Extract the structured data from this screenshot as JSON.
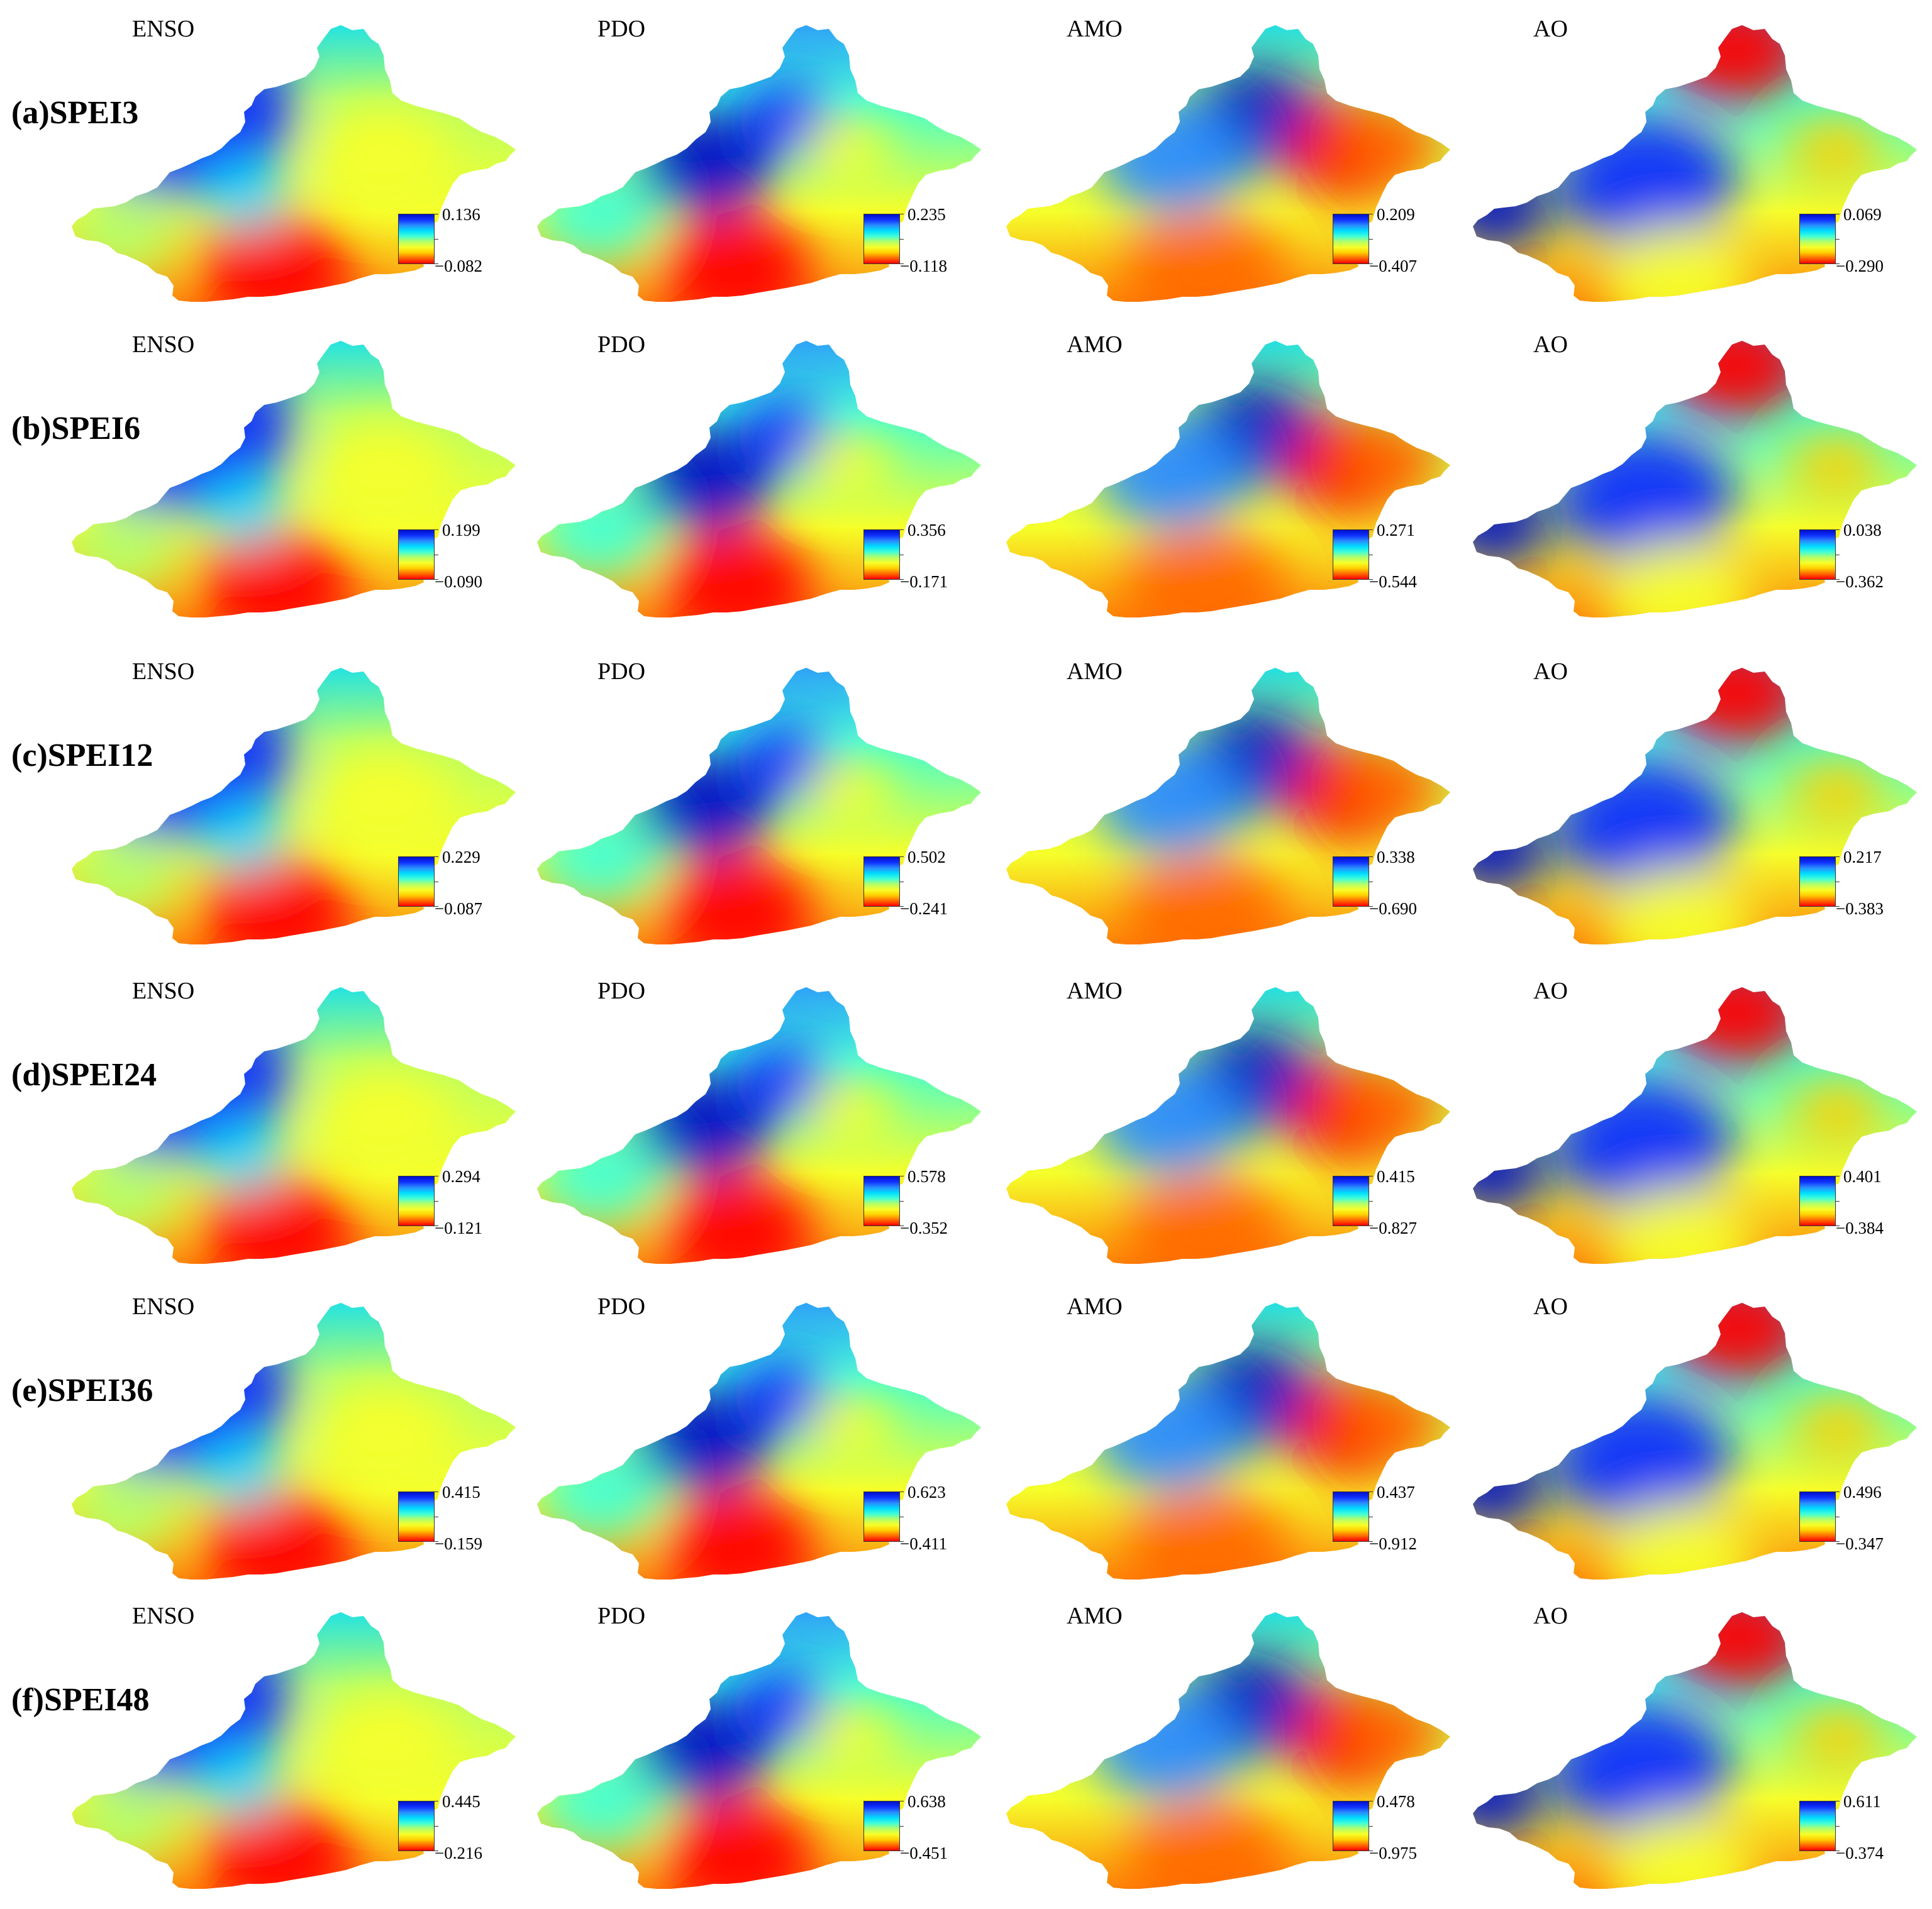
{
  "colors": {
    "scale": [
      "#ff0000",
      "#ff6a00",
      "#ffd000",
      "#f6ff2a",
      "#b4ff6a",
      "#40ffd8",
      "#00dcff",
      "#2a8cff",
      "#1030ff",
      "#0010c8"
    ]
  },
  "rows": [
    {
      "label": "(a)SPEI3",
      "panels": [
        {
          "title": "ENSO",
          "max": "0.136",
          "min": "−0.082"
        },
        {
          "title": "PDO",
          "max": "0.235",
          "min": "−0.118"
        },
        {
          "title": "AMO",
          "max": "0.209",
          "min": "−0.407"
        },
        {
          "title": "AO",
          "max": "0.069",
          "min": "−0.290"
        }
      ]
    },
    {
      "label": "(b)SPEI6",
      "panels": [
        {
          "title": "ENSO",
          "max": "0.199",
          "min": "−0.090"
        },
        {
          "title": "PDO",
          "max": "0.356",
          "min": "−0.171"
        },
        {
          "title": "AMO",
          "max": "0.271",
          "min": "−0.544"
        },
        {
          "title": "AO",
          "max": "0.038",
          "min": "−0.362"
        }
      ]
    },
    {
      "label": "(c)SPEI12",
      "panels": [
        {
          "title": "ENSO",
          "max": "0.229",
          "min": "−0.087"
        },
        {
          "title": "PDO",
          "max": "0.502",
          "min": "−0.241"
        },
        {
          "title": "AMO",
          "max": "0.338",
          "min": "−0.690"
        },
        {
          "title": "AO",
          "max": "0.217",
          "min": "−0.383"
        }
      ]
    },
    {
      "label": "(d)SPEI24",
      "panels": [
        {
          "title": "ENSO",
          "max": "0.294",
          "min": "−0.121"
        },
        {
          "title": "PDO",
          "max": "0.578",
          "min": "−0.352"
        },
        {
          "title": "AMO",
          "max": "0.415",
          "min": "−0.827"
        },
        {
          "title": "AO",
          "max": "0.401",
          "min": "−0.384"
        }
      ]
    },
    {
      "label": "(e)SPEI36",
      "panels": [
        {
          "title": "ENSO",
          "max": "0.415",
          "min": "−0.159"
        },
        {
          "title": "PDO",
          "max": "0.623",
          "min": "−0.411"
        },
        {
          "title": "AMO",
          "max": "0.437",
          "min": "−0.912"
        },
        {
          "title": "AO",
          "max": "0.496",
          "min": "−0.347"
        }
      ]
    },
    {
      "label": "(f)SPEI48",
      "panels": [
        {
          "title": "ENSO",
          "max": "0.445",
          "min": "−0.216"
        },
        {
          "title": "PDO",
          "max": "0.638",
          "min": "−0.451"
        },
        {
          "title": "AMO",
          "max": "0.478",
          "min": "−0.975"
        },
        {
          "title": "AO",
          "max": "0.611",
          "min": "−0.374"
        }
      ]
    }
  ]
}
